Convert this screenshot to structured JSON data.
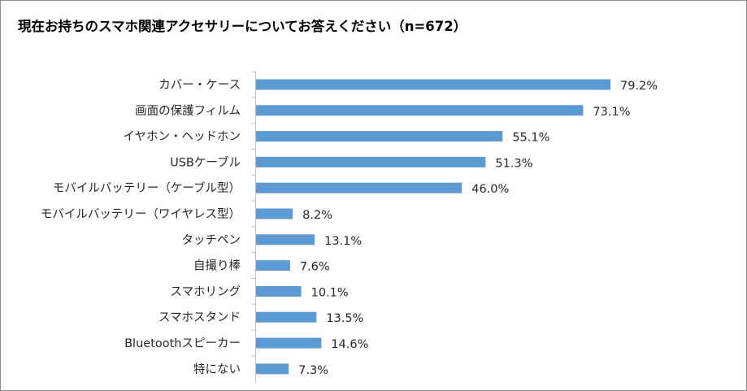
{
  "chart_data": {
    "type": "bar",
    "orientation": "horizontal",
    "title": "現在お持ちのスマホ関連アクセサリーについてお答えください（n=672）",
    "categories": [
      "カバー・ケース",
      "画面の保護フィルム",
      "イヤホン・ヘッドホン",
      "USBケーブル",
      "モバイルバッテリー（ケーブル型）",
      "モバイルバッテリー（ワイヤレス型）",
      "タッチペン",
      "自撮り棒",
      "スマホリング",
      "スマホスタンド",
      "Bluetoothスピーカー",
      "特にない"
    ],
    "values": [
      79.2,
      73.1,
      55.1,
      51.3,
      46.0,
      8.2,
      13.1,
      7.6,
      10.1,
      13.5,
      14.6,
      7.3
    ],
    "value_labels": [
      "79.2%",
      "73.1%",
      "55.1%",
      "51.3%",
      "46.0%",
      "8.2%",
      "13.1%",
      "7.6%",
      "10.1%",
      "13.5%",
      "14.6%",
      "7.3%"
    ],
    "xlim": [
      0,
      100
    ],
    "xlabel": "",
    "ylabel": "",
    "grid": false,
    "bar_color": "#5b9bd5"
  }
}
